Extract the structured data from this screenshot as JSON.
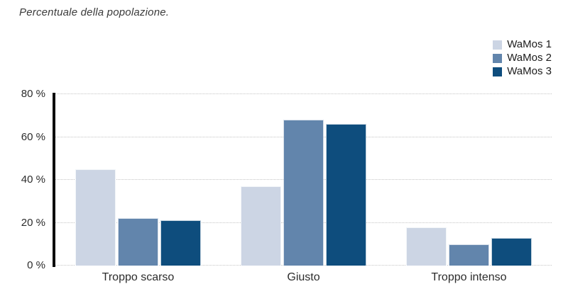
{
  "page": {
    "title": "Percentuale della popolazione."
  },
  "chart_data": {
    "type": "bar",
    "title": "Percentuale della popolazione.",
    "categories": [
      "Troppo scarso",
      "Giusto",
      "Troppo intenso"
    ],
    "series": [
      {
        "name": "WaMos 1",
        "color": "#ccd5e4",
        "values": [
          45,
          37,
          18
        ]
      },
      {
        "name": "WaMos 2",
        "color": "#6285ac",
        "values": [
          22,
          68,
          10
        ]
      },
      {
        "name": "WaMos 3",
        "color": "#0e4d7d",
        "values": [
          21,
          66,
          13
        ]
      }
    ],
    "xlabel": "",
    "ylabel": "",
    "ylim": [
      0,
      80
    ],
    "yticks": [
      {
        "label": "0 %",
        "value": 0
      },
      {
        "label": "20 %",
        "value": 20
      },
      {
        "label": "40 %",
        "value": 40
      },
      {
        "label": "60 %",
        "value": 60
      },
      {
        "label": "80 %",
        "value": 80
      }
    ],
    "grid": "horizontal-dotted",
    "legend_position": "top-right",
    "colors": {
      "gridline": "#c5c5c5",
      "axis_line": "#0c0c0c",
      "text": "#2c2c2c"
    }
  }
}
